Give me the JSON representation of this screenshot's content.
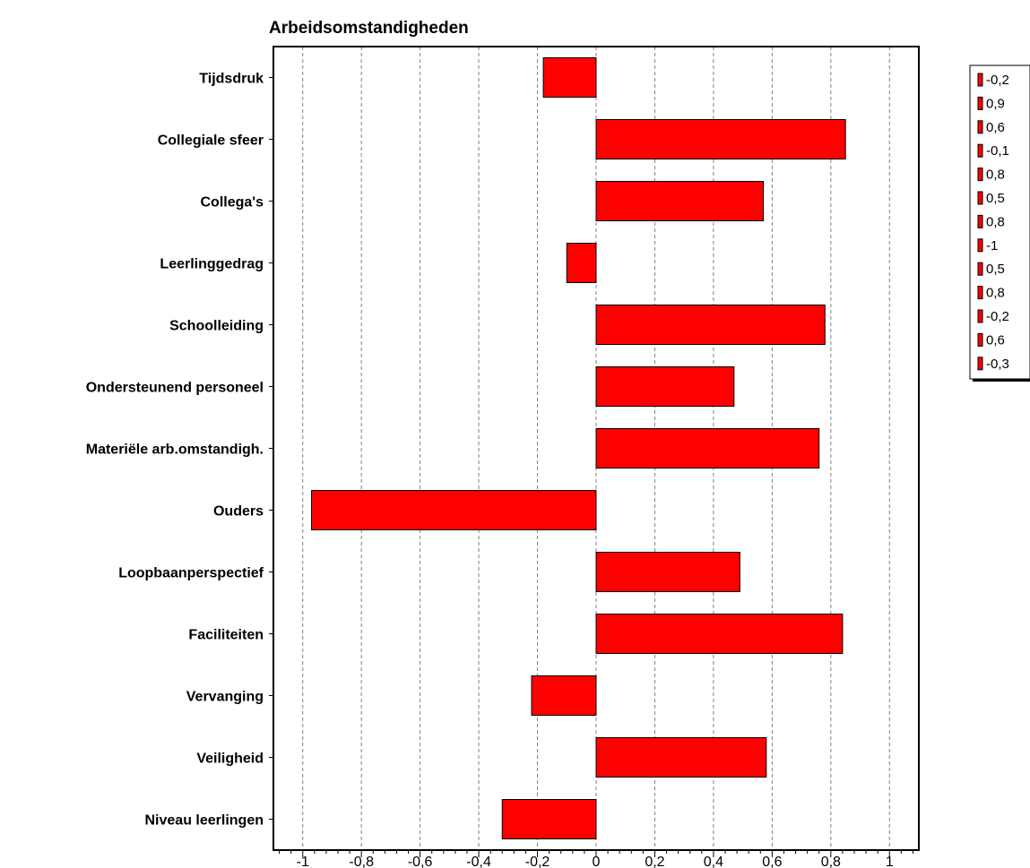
{
  "colors": {
    "bar_fill": "#ff0000",
    "bar_stroke": "#000000",
    "grid": "#808080",
    "background": "#ffffff"
  },
  "chart_data": {
    "type": "bar",
    "orientation": "horizontal",
    "title": "Arbeidsomstandigheden",
    "categories": [
      "Tijdsdruk",
      "Collegiale sfeer",
      "Collega's",
      "Leerlinggedrag",
      "Schoolleiding",
      "Ondersteunend personeel",
      "Materiële arb.omstandigh.",
      "Ouders",
      "Loopbaanperspectief",
      "Faciliteiten",
      "Vervanging",
      "Veiligheid",
      "Niveau leerlingen"
    ],
    "values": [
      -0.18,
      0.85,
      0.57,
      -0.1,
      0.78,
      0.47,
      0.76,
      -0.97,
      0.49,
      0.84,
      -0.22,
      0.58,
      -0.32
    ],
    "xlim": [
      -1.1,
      1.1
    ],
    "xticks": [
      -1,
      -0.8,
      -0.6,
      -0.4,
      -0.2,
      0,
      0.2,
      0.4,
      0.6,
      0.8,
      1
    ],
    "xtick_labels": [
      "-1",
      "-0,8",
      "-0,6",
      "-0,4",
      "-0,2",
      "0",
      "0,2",
      "0,4",
      "0,6",
      "0,8",
      "1"
    ],
    "grid": "vertical dashed",
    "legend_position": "top-right",
    "legend_entries": [
      "-0,2",
      "0,9",
      "0,6",
      "-0,1",
      "0,8",
      "0,5",
      "0,8",
      "-1",
      "0,5",
      "0,8",
      "-0,2",
      "0,6",
      "-0,3"
    ]
  }
}
